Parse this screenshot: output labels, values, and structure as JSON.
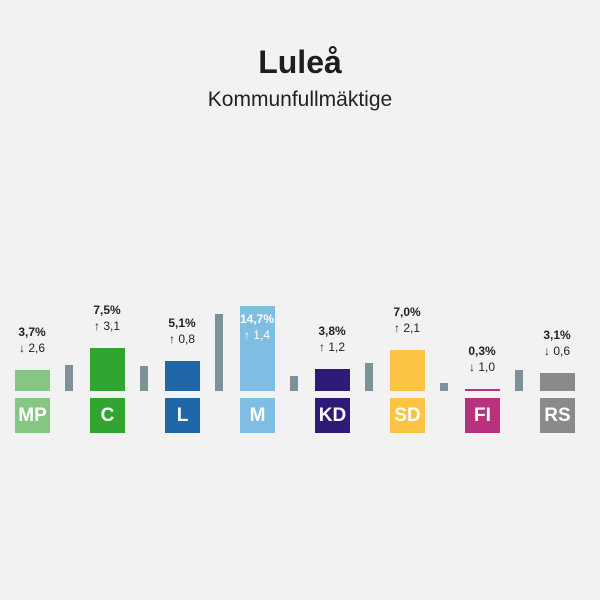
{
  "header": {
    "title": "Luleå",
    "subtitle": "Kommunfullmäktige"
  },
  "chart_data": {
    "type": "bar",
    "title": "Luleå",
    "subtitle": "Kommunfullmäktige",
    "categories": [
      "MP",
      "C",
      "L",
      "M",
      "KD",
      "SD",
      "FI",
      "RS"
    ],
    "series": [
      {
        "name": "Result",
        "values": [
          3.7,
          7.5,
          5.1,
          14.7,
          3.8,
          7.0,
          0.3,
          3.1
        ],
        "labels": [
          "3,7%",
          "7,5%",
          "5,1%",
          "14,7%",
          "3,8%",
          "7,0%",
          "0,3%",
          "3,1%"
        ]
      },
      {
        "name": "Previous",
        "values": [
          6.3,
          4.4,
          4.3,
          13.3,
          2.6,
          4.9,
          1.3,
          3.7
        ]
      }
    ],
    "changes": [
      {
        "dir": "down",
        "label": "2,6"
      },
      {
        "dir": "up",
        "label": "3,1"
      },
      {
        "dir": "up",
        "label": "0,8"
      },
      {
        "dir": "up",
        "label": "1,4"
      },
      {
        "dir": "up",
        "label": "1,2"
      },
      {
        "dir": "up",
        "label": "2,1"
      },
      {
        "dir": "down",
        "label": "1,0"
      },
      {
        "dir": "down",
        "label": "0,6"
      }
    ],
    "colors": [
      "#83c783",
      "#31a532",
      "#1f67a8",
      "#80bde2",
      "#2e1a78",
      "#fdc342",
      "#b8327f",
      "#8a8a8a"
    ],
    "previous_color": "#7d9298"
  }
}
